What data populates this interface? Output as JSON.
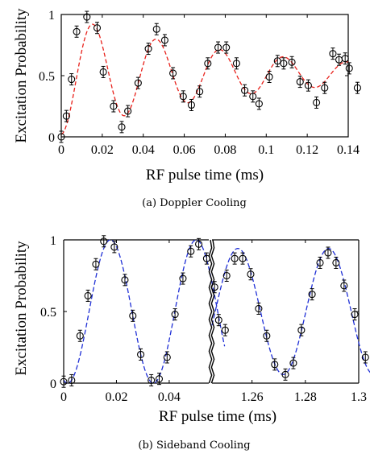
{
  "chart_data": [
    {
      "type": "scatter",
      "caption": "(a)  Doppler Cooling",
      "xlabel": "RF pulse time (ms)",
      "ylabel": "Excitation Probability",
      "xlim": [
        0,
        0.14
      ],
      "ylim": [
        0,
        1
      ],
      "xticks": [
        "0",
        "0.02",
        "0.04",
        "0.06",
        "0.08",
        "0.1",
        "0.12",
        "0.14"
      ],
      "yticks": [
        "0",
        "0.5",
        "1"
      ],
      "fit_color": "#e8201a",
      "marker_color": "#000000",
      "points": [
        {
          "x": 0.0,
          "y": 0.0
        },
        {
          "x": 0.0025,
          "y": 0.17
        },
        {
          "x": 0.005,
          "y": 0.47
        },
        {
          "x": 0.0075,
          "y": 0.86
        },
        {
          "x": 0.0125,
          "y": 0.98
        },
        {
          "x": 0.0175,
          "y": 0.89
        },
        {
          "x": 0.0205,
          "y": 0.53
        },
        {
          "x": 0.0255,
          "y": 0.25
        },
        {
          "x": 0.0295,
          "y": 0.08
        },
        {
          "x": 0.0325,
          "y": 0.21
        },
        {
          "x": 0.0375,
          "y": 0.44
        },
        {
          "x": 0.0425,
          "y": 0.72
        },
        {
          "x": 0.0465,
          "y": 0.88
        },
        {
          "x": 0.0505,
          "y": 0.79
        },
        {
          "x": 0.0545,
          "y": 0.52
        },
        {
          "x": 0.0595,
          "y": 0.33
        },
        {
          "x": 0.0635,
          "y": 0.26
        },
        {
          "x": 0.0675,
          "y": 0.37
        },
        {
          "x": 0.0715,
          "y": 0.6
        },
        {
          "x": 0.0765,
          "y": 0.73
        },
        {
          "x": 0.0805,
          "y": 0.73
        },
        {
          "x": 0.0855,
          "y": 0.6
        },
        {
          "x": 0.0895,
          "y": 0.38
        },
        {
          "x": 0.0935,
          "y": 0.33
        },
        {
          "x": 0.0965,
          "y": 0.27
        },
        {
          "x": 0.1015,
          "y": 0.49
        },
        {
          "x": 0.1055,
          "y": 0.62
        },
        {
          "x": 0.1085,
          "y": 0.6
        },
        {
          "x": 0.1125,
          "y": 0.61
        },
        {
          "x": 0.1165,
          "y": 0.45
        },
        {
          "x": 0.1205,
          "y": 0.42
        },
        {
          "x": 0.1245,
          "y": 0.28
        },
        {
          "x": 0.1285,
          "y": 0.4
        },
        {
          "x": 0.1325,
          "y": 0.68
        },
        {
          "x": 0.1355,
          "y": 0.63
        },
        {
          "x": 0.1385,
          "y": 0.64
        },
        {
          "x": 0.1405,
          "y": 0.56
        },
        {
          "x": 0.1445,
          "y": 0.4
        }
      ],
      "fit_curve": {
        "form": "0.5 + 0.5*exp(-t/0.085)*(1 - cos(2*pi*t/0.031))*0.93 + baseline",
        "period_ms": 0.031,
        "decay_ms": 0.085
      }
    },
    {
      "type": "scatter",
      "caption": "(b)  Sideband Cooling",
      "xlabel": "RF pulse time (ms)",
      "ylabel": "Excitation Probability",
      "ylim": [
        0,
        1
      ],
      "broken_axis": true,
      "segments": [
        {
          "xlim": [
            0,
            0.055
          ],
          "xticks": [
            "0",
            "0.02",
            "0.04"
          ]
        },
        {
          "xlim": [
            1.245,
            1.3
          ],
          "xticks": [
            "1.26",
            "1.28",
            "1.3"
          ]
        }
      ],
      "yticks": [
        "0",
        "0.5",
        "1"
      ],
      "fit_color": "#1f2fd6",
      "marker_color": "#000000",
      "points": [
        {
          "x": 0.0,
          "y": 0.01
        },
        {
          "x": 0.003,
          "y": 0.02
        },
        {
          "x": 0.0062,
          "y": 0.33
        },
        {
          "x": 0.0092,
          "y": 0.61
        },
        {
          "x": 0.0122,
          "y": 0.83
        },
        {
          "x": 0.0152,
          "y": 0.99
        },
        {
          "x": 0.0192,
          "y": 0.95
        },
        {
          "x": 0.0232,
          "y": 0.72
        },
        {
          "x": 0.0262,
          "y": 0.47
        },
        {
          "x": 0.0292,
          "y": 0.2
        },
        {
          "x": 0.0332,
          "y": 0.02
        },
        {
          "x": 0.0362,
          "y": 0.03
        },
        {
          "x": 0.0392,
          "y": 0.18
        },
        {
          "x": 0.0422,
          "y": 0.48
        },
        {
          "x": 0.0452,
          "y": 0.73
        },
        {
          "x": 0.0482,
          "y": 0.92
        },
        {
          "x": 0.0512,
          "y": 0.97
        },
        {
          "x": 0.0542,
          "y": 0.87
        },
        {
          "x": 0.0572,
          "y": 0.67
        },
        {
          "x": 0.0612,
          "y": 0.37
        },
        {
          "x": 1.2475,
          "y": 0.44
        },
        {
          "x": 1.2505,
          "y": 0.75
        },
        {
          "x": 1.2535,
          "y": 0.87
        },
        {
          "x": 1.2565,
          "y": 0.87
        },
        {
          "x": 1.2595,
          "y": 0.76
        },
        {
          "x": 1.2625,
          "y": 0.52
        },
        {
          "x": 1.2655,
          "y": 0.33
        },
        {
          "x": 1.2685,
          "y": 0.13
        },
        {
          "x": 1.2725,
          "y": 0.06
        },
        {
          "x": 1.2755,
          "y": 0.14
        },
        {
          "x": 1.2785,
          "y": 0.37
        },
        {
          "x": 1.2825,
          "y": 0.62
        },
        {
          "x": 1.2855,
          "y": 0.84
        },
        {
          "x": 1.2885,
          "y": 0.91
        },
        {
          "x": 1.2915,
          "y": 0.84
        },
        {
          "x": 1.2945,
          "y": 0.68
        },
        {
          "x": 1.2985,
          "y": 0.48
        },
        {
          "x": 1.3025,
          "y": 0.18
        },
        {
          "x": 1.3065,
          "y": 0.08
        },
        {
          "x": 1.3095,
          "y": 0.1
        }
      ],
      "fit_curve": {
        "form": "0.5 - 0.5*cos(2*pi*t/0.0325)",
        "period_ms": 0.0325
      }
    }
  ]
}
